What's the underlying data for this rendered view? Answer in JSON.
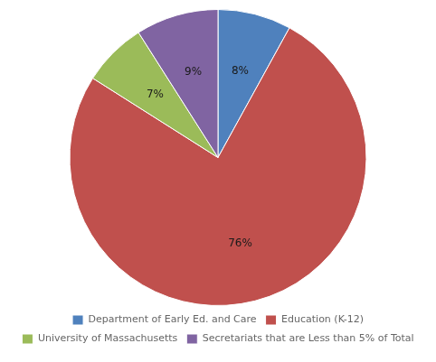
{
  "chart_data": {
    "type": "pie",
    "categories": [
      "Department of Early Ed. and Care",
      "Education (K-12)",
      "University of Massachusetts",
      "Secretariats that are Less than 5% of Total"
    ],
    "values": [
      8,
      76,
      7,
      9
    ],
    "value_labels": [
      "8%",
      "76%",
      "7%",
      "9%"
    ],
    "colors": [
      "#4f81bd",
      "#c0504d",
      "#9bbb59",
      "#8064a2"
    ],
    "data_labels": true,
    "legend": "bottom"
  }
}
